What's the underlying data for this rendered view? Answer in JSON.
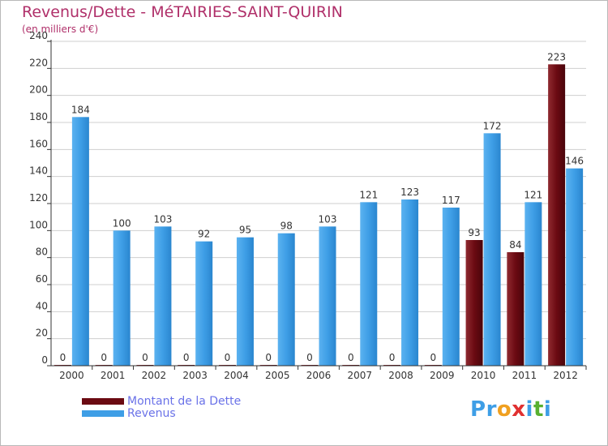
{
  "title": "Revenus/Dette - MéTAIRIES-SAINT-QUIRIN",
  "subtitle": "(en milliers d'€)",
  "colors": {
    "dette": "#6b0a12",
    "revenus": "#3e9ee6",
    "title": "#b0306a",
    "legend_text": "#6a72e8",
    "grid": "#cfcfcf",
    "axis": "#333333"
  },
  "chart_data": {
    "type": "bar",
    "categories": [
      "2000",
      "2001",
      "2002",
      "2003",
      "2004",
      "2005",
      "2006",
      "2007",
      "2008",
      "2009",
      "2010",
      "2011",
      "2012"
    ],
    "series": [
      {
        "name": "Montant de la Dette",
        "values": [
          0,
          0,
          0,
          0,
          0,
          0,
          0,
          0,
          0,
          0,
          93,
          84,
          223
        ]
      },
      {
        "name": "Revenus",
        "values": [
          184,
          100,
          103,
          92,
          95,
          98,
          103,
          121,
          123,
          117,
          172,
          121,
          146
        ]
      }
    ],
    "ylim": [
      0,
      240
    ],
    "yticks": [
      0,
      20,
      40,
      60,
      80,
      100,
      120,
      140,
      160,
      180,
      200,
      220,
      240
    ],
    "grid": true,
    "legend_position": "bottom-left"
  },
  "legend": [
    {
      "label": "Montant de la Dette",
      "color": "#6b0a12"
    },
    {
      "label": "Revenus",
      "color": "#3e9ee6"
    }
  ],
  "logo": {
    "letters": [
      "P",
      "r",
      "o",
      "x",
      "i",
      "t",
      "i"
    ],
    "colors": [
      "#3e9ee6",
      "#3e9ee6",
      "#f0a020",
      "#e03030",
      "#3e9ee6",
      "#58b030",
      "#3e9ee6"
    ]
  }
}
